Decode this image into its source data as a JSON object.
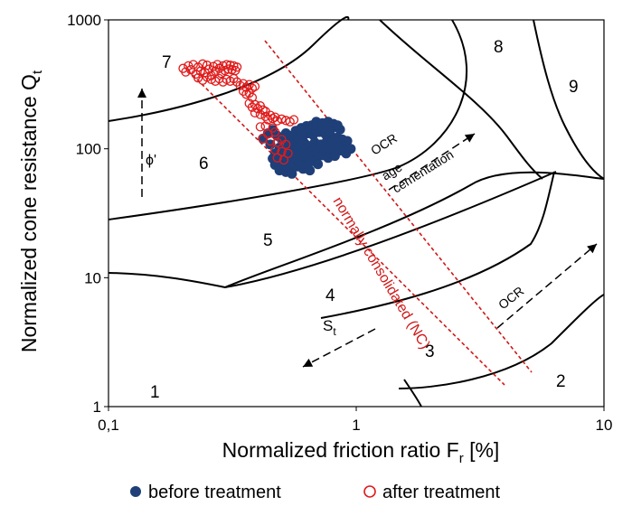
{
  "chart_data": {
    "type": "scatter",
    "xlabel": "Normalized friction ratio F",
    "xlabel_sub": "r",
    "xlabel_unit": " [%]",
    "ylabel": "Normalized cone resistance  Q",
    "ylabel_sub": "t",
    "x_scale": "log",
    "y_scale": "log",
    "xlim": [
      0.1,
      10
    ],
    "ylim": [
      1,
      1000
    ],
    "x_ticks": [
      {
        "value": 0.1,
        "label": "0,1"
      },
      {
        "value": 1,
        "label": "1"
      },
      {
        "value": 10,
        "label": "10"
      }
    ],
    "y_ticks": [
      {
        "value": 1,
        "label": "1"
      },
      {
        "value": 10,
        "label": "10"
      },
      {
        "value": 100,
        "label": "100"
      },
      {
        "value": 1000,
        "label": "1000"
      }
    ],
    "grid": false,
    "legend_position": "bottom",
    "series": [
      {
        "name": "before treatment",
        "marker": "filled-circle",
        "color": "#1f3f78",
        "points": [
          [
            0.57,
            138
          ],
          [
            0.6,
            145
          ],
          [
            0.63,
            150
          ],
          [
            0.66,
            152
          ],
          [
            0.7,
            148
          ],
          [
            0.74,
            155
          ],
          [
            0.78,
            150
          ],
          [
            0.82,
            147
          ],
          [
            0.86,
            141
          ],
          [
            0.52,
            132
          ],
          [
            0.55,
            126
          ],
          [
            0.58,
            120
          ],
          [
            0.61,
            125
          ],
          [
            0.64,
            132
          ],
          [
            0.67,
            128
          ],
          [
            0.71,
            135
          ],
          [
            0.75,
            130
          ],
          [
            0.79,
            126
          ],
          [
            0.84,
            122
          ],
          [
            0.88,
            118
          ],
          [
            0.92,
            115
          ],
          [
            0.5,
            118
          ],
          [
            0.53,
            112
          ],
          [
            0.56,
            108
          ],
          [
            0.59,
            115
          ],
          [
            0.62,
            110
          ],
          [
            0.65,
            105
          ],
          [
            0.68,
            112
          ],
          [
            0.72,
            108
          ],
          [
            0.76,
            114
          ],
          [
            0.8,
            110
          ],
          [
            0.85,
            106
          ],
          [
            0.9,
            103
          ],
          [
            0.95,
            100
          ],
          [
            0.49,
            102
          ],
          [
            0.52,
            98
          ],
          [
            0.55,
            95
          ],
          [
            0.58,
            101
          ],
          [
            0.61,
            97
          ],
          [
            0.64,
            93
          ],
          [
            0.67,
            99
          ],
          [
            0.7,
            95
          ],
          [
            0.73,
            102
          ],
          [
            0.77,
            98
          ],
          [
            0.81,
            94
          ],
          [
            0.86,
            97
          ],
          [
            0.91,
            92
          ],
          [
            0.47,
            92
          ],
          [
            0.5,
            88
          ],
          [
            0.53,
            85
          ],
          [
            0.56,
            90
          ],
          [
            0.6,
            86
          ],
          [
            0.63,
            83
          ],
          [
            0.66,
            88
          ],
          [
            0.69,
            84
          ],
          [
            0.73,
            89
          ],
          [
            0.77,
            85
          ],
          [
            0.82,
            88
          ],
          [
            0.46,
            84
          ],
          [
            0.49,
            80
          ],
          [
            0.52,
            77
          ],
          [
            0.56,
            82
          ],
          [
            0.59,
            78
          ],
          [
            0.62,
            75
          ],
          [
            0.66,
            80
          ],
          [
            0.7,
            76
          ],
          [
            0.47,
            75
          ],
          [
            0.5,
            72
          ],
          [
            0.54,
            70
          ],
          [
            0.58,
            73
          ],
          [
            0.61,
            70
          ],
          [
            0.65,
            68
          ],
          [
            0.49,
            68
          ],
          [
            0.52,
            66
          ],
          [
            0.55,
            64
          ],
          [
            0.44,
            132
          ],
          [
            0.46,
            140
          ],
          [
            0.48,
            126
          ],
          [
            0.42,
            120
          ],
          [
            0.45,
            108
          ],
          [
            0.69,
            162
          ],
          [
            0.73,
            158
          ],
          [
            0.77,
            162
          ],
          [
            0.81,
            156
          ],
          [
            0.84,
            152
          ],
          [
            0.6,
            140
          ],
          [
            0.65,
            142
          ],
          [
            0.69,
            138
          ],
          [
            0.73,
            141
          ],
          [
            0.78,
            138
          ]
        ]
      },
      {
        "name": "after treatment",
        "marker": "open-circle",
        "color": "#e01b1b",
        "points": [
          [
            0.2,
            420
          ],
          [
            0.205,
            395
          ],
          [
            0.21,
            440
          ],
          [
            0.215,
            410
          ],
          [
            0.22,
            450
          ],
          [
            0.225,
            380
          ],
          [
            0.23,
            430
          ],
          [
            0.235,
            400
          ],
          [
            0.24,
            455
          ],
          [
            0.245,
            390
          ],
          [
            0.25,
            445
          ],
          [
            0.255,
            415
          ],
          [
            0.26,
            370
          ],
          [
            0.265,
            435
          ],
          [
            0.27,
            400
          ],
          [
            0.275,
            450
          ],
          [
            0.28,
            420
          ],
          [
            0.285,
            385
          ],
          [
            0.29,
            440
          ],
          [
            0.295,
            405
          ],
          [
            0.3,
            450
          ],
          [
            0.305,
            415
          ],
          [
            0.31,
            445
          ],
          [
            0.315,
            410
          ],
          [
            0.32,
            440
          ],
          [
            0.325,
            405
          ],
          [
            0.33,
            430
          ],
          [
            0.23,
            355
          ],
          [
            0.24,
            340
          ],
          [
            0.25,
            360
          ],
          [
            0.26,
            345
          ],
          [
            0.27,
            335
          ],
          [
            0.28,
            350
          ],
          [
            0.29,
            330
          ],
          [
            0.3,
            345
          ],
          [
            0.31,
            335
          ],
          [
            0.32,
            350
          ],
          [
            0.33,
            330
          ],
          [
            0.34,
            310
          ],
          [
            0.35,
            320
          ],
          [
            0.36,
            300
          ],
          [
            0.37,
            315
          ],
          [
            0.38,
            295
          ],
          [
            0.39,
            305
          ],
          [
            0.35,
            280
          ],
          [
            0.36,
            265
          ],
          [
            0.37,
            270
          ],
          [
            0.38,
            250
          ],
          [
            0.37,
            225
          ],
          [
            0.38,
            210
          ],
          [
            0.39,
            220
          ],
          [
            0.4,
            205
          ],
          [
            0.41,
            215
          ],
          [
            0.42,
            200
          ],
          [
            0.43,
            195
          ],
          [
            0.39,
            190
          ],
          [
            0.41,
            185
          ],
          [
            0.43,
            178
          ],
          [
            0.45,
            182
          ],
          [
            0.47,
            176
          ],
          [
            0.44,
            168
          ],
          [
            0.46,
            172
          ],
          [
            0.48,
            165
          ],
          [
            0.5,
            170
          ],
          [
            0.52,
            166
          ],
          [
            0.54,
            162
          ],
          [
            0.56,
            168
          ],
          [
            0.41,
            148
          ],
          [
            0.43,
            150
          ],
          [
            0.46,
            145
          ],
          [
            0.44,
            130
          ],
          [
            0.47,
            135
          ],
          [
            0.42,
            120
          ],
          [
            0.45,
            115
          ],
          [
            0.48,
            112
          ],
          [
            0.5,
            118
          ],
          [
            0.52,
            108
          ],
          [
            0.47,
            98
          ],
          [
            0.5,
            95
          ],
          [
            0.53,
            92
          ],
          [
            0.48,
            85
          ],
          [
            0.51,
            82
          ]
        ]
      }
    ],
    "zone_labels": [
      "1",
      "2",
      "3",
      "4",
      "5",
      "6",
      "7",
      "8",
      "9"
    ],
    "annotations": {
      "phi": "ϕ'",
      "ocr": "OCR",
      "age": "age",
      "cementation": "cementation",
      "nc": "normally consolidated (NC)",
      "st": "S",
      "st_sub": "t"
    }
  }
}
